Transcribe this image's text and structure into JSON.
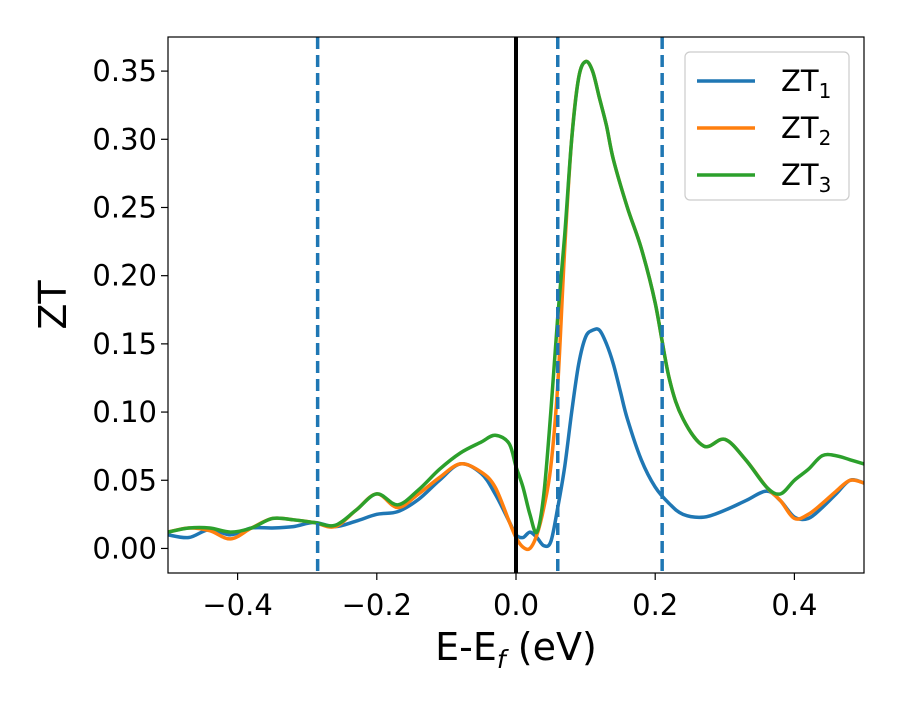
{
  "chart_data": {
    "type": "line",
    "title": "",
    "xlabel": "E-E",
    "xlabel_sub": "f",
    "xlabel_unit": " (eV)",
    "ylabel": "ZT",
    "xlim": [
      -0.5,
      0.5
    ],
    "ylim": [
      -0.018,
      0.375
    ],
    "xticks": [
      -0.4,
      -0.2,
      0.0,
      0.2,
      0.4
    ],
    "xtick_labels": [
      "−0.4",
      "−0.2",
      "0.0",
      "0.2",
      "0.4"
    ],
    "yticks": [
      0.0,
      0.05,
      0.1,
      0.15,
      0.2,
      0.25,
      0.3,
      0.35
    ],
    "ytick_labels": [
      "0.00",
      "0.05",
      "0.10",
      "0.15",
      "0.20",
      "0.25",
      "0.30",
      "0.35"
    ],
    "grid": false,
    "legend_position": "top-right",
    "vlines": [
      {
        "x": 0.0,
        "style": "solid",
        "color": "#000000"
      },
      {
        "x": -0.285,
        "style": "dashed",
        "color": "#1f77b4"
      },
      {
        "x": 0.06,
        "style": "dashed",
        "color": "#1f77b4"
      },
      {
        "x": 0.21,
        "style": "dashed",
        "color": "#1f77b4"
      }
    ],
    "series": [
      {
        "name": "ZT",
        "sub": "1",
        "color": "#1f77b4",
        "x": [
          -0.5,
          -0.47,
          -0.44,
          -0.41,
          -0.38,
          -0.35,
          -0.32,
          -0.29,
          -0.26,
          -0.23,
          -0.2,
          -0.17,
          -0.14,
          -0.11,
          -0.08,
          -0.05,
          -0.03,
          -0.01,
          0.0,
          0.01,
          0.02,
          0.03,
          0.04,
          0.05,
          0.06,
          0.07,
          0.08,
          0.09,
          0.1,
          0.11,
          0.12,
          0.13,
          0.14,
          0.15,
          0.16,
          0.18,
          0.2,
          0.22,
          0.24,
          0.27,
          0.3,
          0.33,
          0.36,
          0.38,
          0.4,
          0.42,
          0.44,
          0.46,
          0.48,
          0.5
        ],
        "y": [
          0.01,
          0.008,
          0.014,
          0.01,
          0.015,
          0.015,
          0.016,
          0.019,
          0.016,
          0.02,
          0.025,
          0.027,
          0.036,
          0.05,
          0.062,
          0.055,
          0.04,
          0.02,
          0.01,
          0.008,
          0.012,
          0.008,
          0.002,
          0.005,
          0.03,
          0.06,
          0.1,
          0.135,
          0.155,
          0.16,
          0.16,
          0.15,
          0.135,
          0.115,
          0.095,
          0.065,
          0.045,
          0.033,
          0.025,
          0.023,
          0.028,
          0.035,
          0.042,
          0.035,
          0.023,
          0.022,
          0.03,
          0.04,
          0.05,
          0.048
        ]
      },
      {
        "name": "ZT",
        "sub": "2",
        "color": "#ff7f0e",
        "x": [
          -0.5,
          -0.47,
          -0.44,
          -0.41,
          -0.38,
          -0.35,
          -0.32,
          -0.29,
          -0.26,
          -0.23,
          -0.2,
          -0.17,
          -0.14,
          -0.11,
          -0.08,
          -0.05,
          -0.03,
          -0.01,
          0.0,
          0.01,
          0.02,
          0.03,
          0.04,
          0.05,
          0.06,
          0.07,
          0.08,
          0.09,
          0.1,
          0.11,
          0.12,
          0.13,
          0.14,
          0.16,
          0.18,
          0.2,
          0.22,
          0.24,
          0.27,
          0.3,
          0.33,
          0.36,
          0.38,
          0.4,
          0.42,
          0.44,
          0.46,
          0.48,
          0.5
        ],
        "y": [
          0.012,
          0.015,
          0.013,
          0.007,
          0.015,
          0.022,
          0.021,
          0.019,
          0.016,
          0.028,
          0.04,
          0.03,
          0.04,
          0.052,
          0.062,
          0.056,
          0.045,
          0.02,
          0.008,
          0.001,
          0.0,
          0.01,
          0.03,
          0.06,
          0.12,
          0.22,
          0.3,
          0.345,
          0.357,
          0.35,
          0.33,
          0.31,
          0.285,
          0.25,
          0.22,
          0.18,
          0.125,
          0.095,
          0.075,
          0.08,
          0.065,
          0.045,
          0.035,
          0.022,
          0.025,
          0.033,
          0.042,
          0.05,
          0.048
        ]
      },
      {
        "name": "ZT",
        "sub": "3",
        "color": "#2ca02c",
        "x": [
          -0.5,
          -0.47,
          -0.44,
          -0.41,
          -0.38,
          -0.35,
          -0.32,
          -0.29,
          -0.26,
          -0.23,
          -0.2,
          -0.17,
          -0.14,
          -0.11,
          -0.08,
          -0.05,
          -0.03,
          -0.01,
          0.0,
          0.01,
          0.02,
          0.03,
          0.04,
          0.05,
          0.06,
          0.07,
          0.08,
          0.09,
          0.1,
          0.11,
          0.12,
          0.13,
          0.14,
          0.16,
          0.18,
          0.2,
          0.22,
          0.24,
          0.27,
          0.3,
          0.33,
          0.36,
          0.38,
          0.4,
          0.42,
          0.44,
          0.46,
          0.48,
          0.5
        ],
        "y": [
          0.012,
          0.015,
          0.015,
          0.012,
          0.015,
          0.022,
          0.021,
          0.019,
          0.017,
          0.028,
          0.04,
          0.032,
          0.043,
          0.058,
          0.07,
          0.078,
          0.083,
          0.077,
          0.06,
          0.045,
          0.025,
          0.012,
          0.04,
          0.1,
          0.17,
          0.23,
          0.3,
          0.345,
          0.357,
          0.35,
          0.33,
          0.31,
          0.285,
          0.25,
          0.22,
          0.18,
          0.125,
          0.095,
          0.075,
          0.08,
          0.065,
          0.045,
          0.04,
          0.05,
          0.058,
          0.068,
          0.068,
          0.065,
          0.062
        ]
      }
    ]
  }
}
